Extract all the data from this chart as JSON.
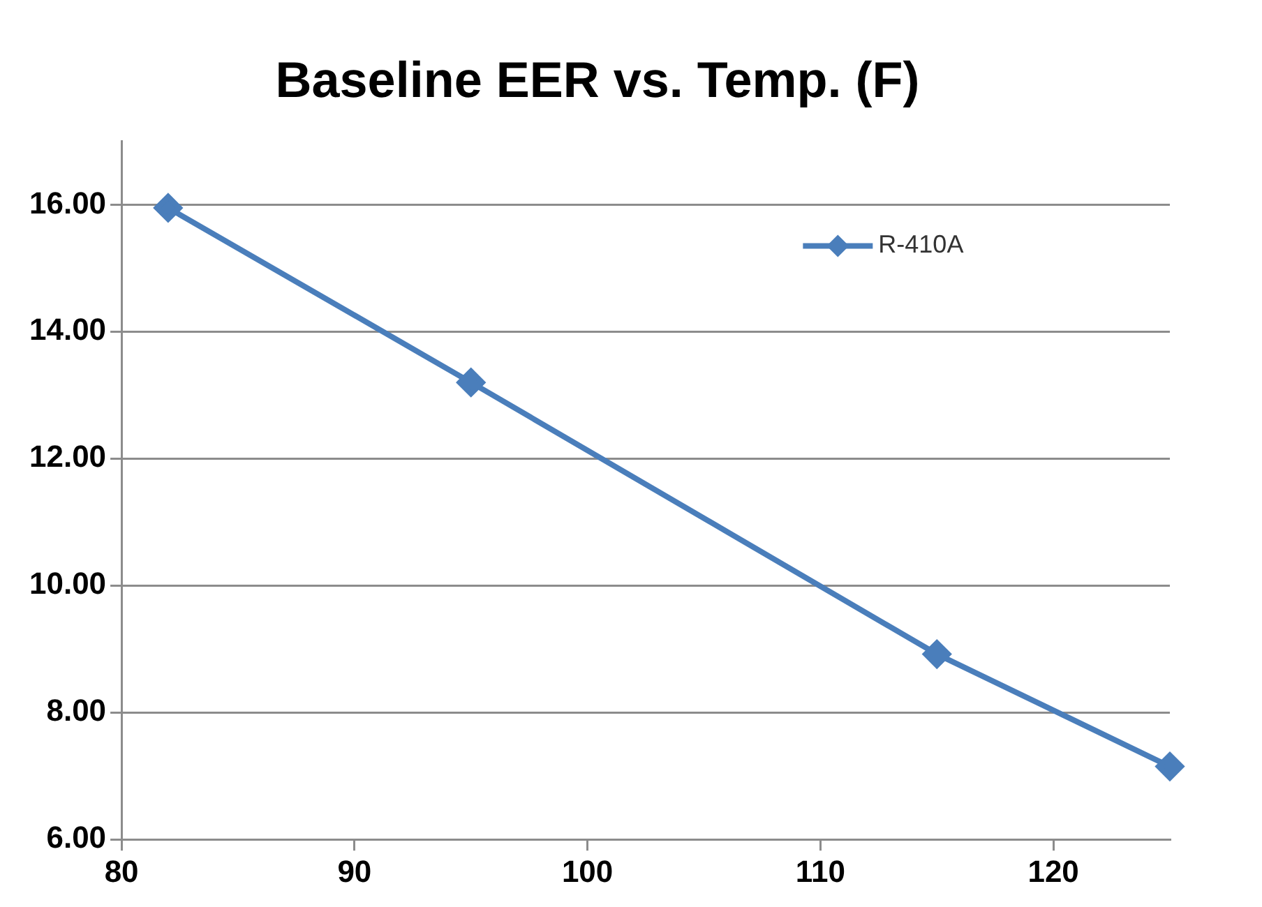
{
  "chart_data": {
    "type": "line",
    "title": "Baseline EER vs. Temp. (F)",
    "x": [
      82,
      95,
      115,
      125
    ],
    "series": [
      {
        "name": "R-410A",
        "color": "#4a7ebb",
        "values": [
          15.95,
          13.2,
          8.92,
          7.15
        ]
      }
    ],
    "xlim": [
      80,
      125
    ],
    "xticks": [
      80,
      90,
      100,
      110,
      120
    ],
    "ylim": [
      6,
      17
    ],
    "yticks": [
      {
        "value": 6,
        "label": "6.00"
      },
      {
        "value": 8,
        "label": "8.00"
      },
      {
        "value": 10,
        "label": "10.00"
      },
      {
        "value": 12,
        "label": "12.00"
      },
      {
        "value": 14,
        "label": "14.00"
      },
      {
        "value": 16,
        "label": "16.00"
      }
    ],
    "grid": "y",
    "legend": "top right",
    "marker": "diamond",
    "line_style": "solid"
  }
}
